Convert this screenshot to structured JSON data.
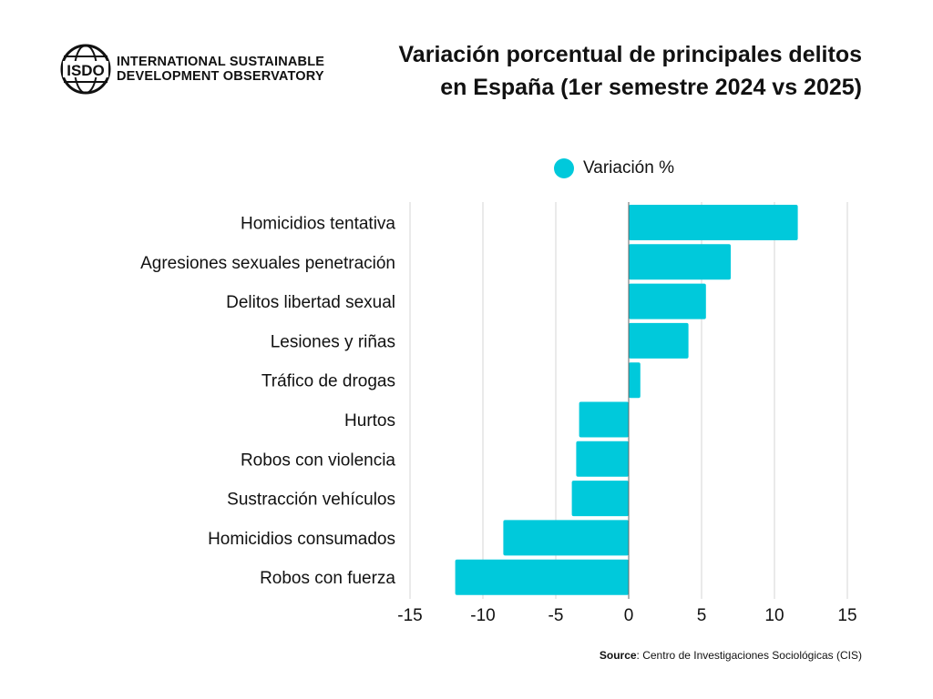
{
  "logo": {
    "line1": "INTERNATIONAL SUSTAINABLE",
    "line2": "DEVELOPMENT OBSERVATORY",
    "mark": "ISDO"
  },
  "source": {
    "label": "Source",
    "text": ": Centro de Investigaciones Sociológicas (CIS)"
  },
  "chart_data": {
    "type": "bar",
    "orientation": "horizontal",
    "title": "Variación porcentual de principales delitos en España (1er semestre 2024 vs 2025)",
    "categories": [
      "Homicidios tentativa",
      "Agresiones sexuales penetración",
      "Delitos libertad sexual",
      "Lesiones y riñas",
      "Tráfico de drogas",
      "Hurtos",
      "Robos con violencia",
      "Sustracción vehículos",
      "Homicidios consumados",
      "Robos con fuerza"
    ],
    "series": [
      {
        "name": "Variación %",
        "color": "#00c9db",
        "values": [
          11.6,
          7.0,
          5.3,
          4.1,
          0.8,
          -3.4,
          -3.6,
          -3.9,
          -8.6,
          -11.9
        ]
      }
    ],
    "xlim": [
      -15,
      15
    ],
    "xticks": [
      -15,
      -10,
      -5,
      0,
      5,
      10,
      15
    ],
    "grid": true,
    "legend_position": "top",
    "xlabel": "",
    "ylabel": ""
  }
}
